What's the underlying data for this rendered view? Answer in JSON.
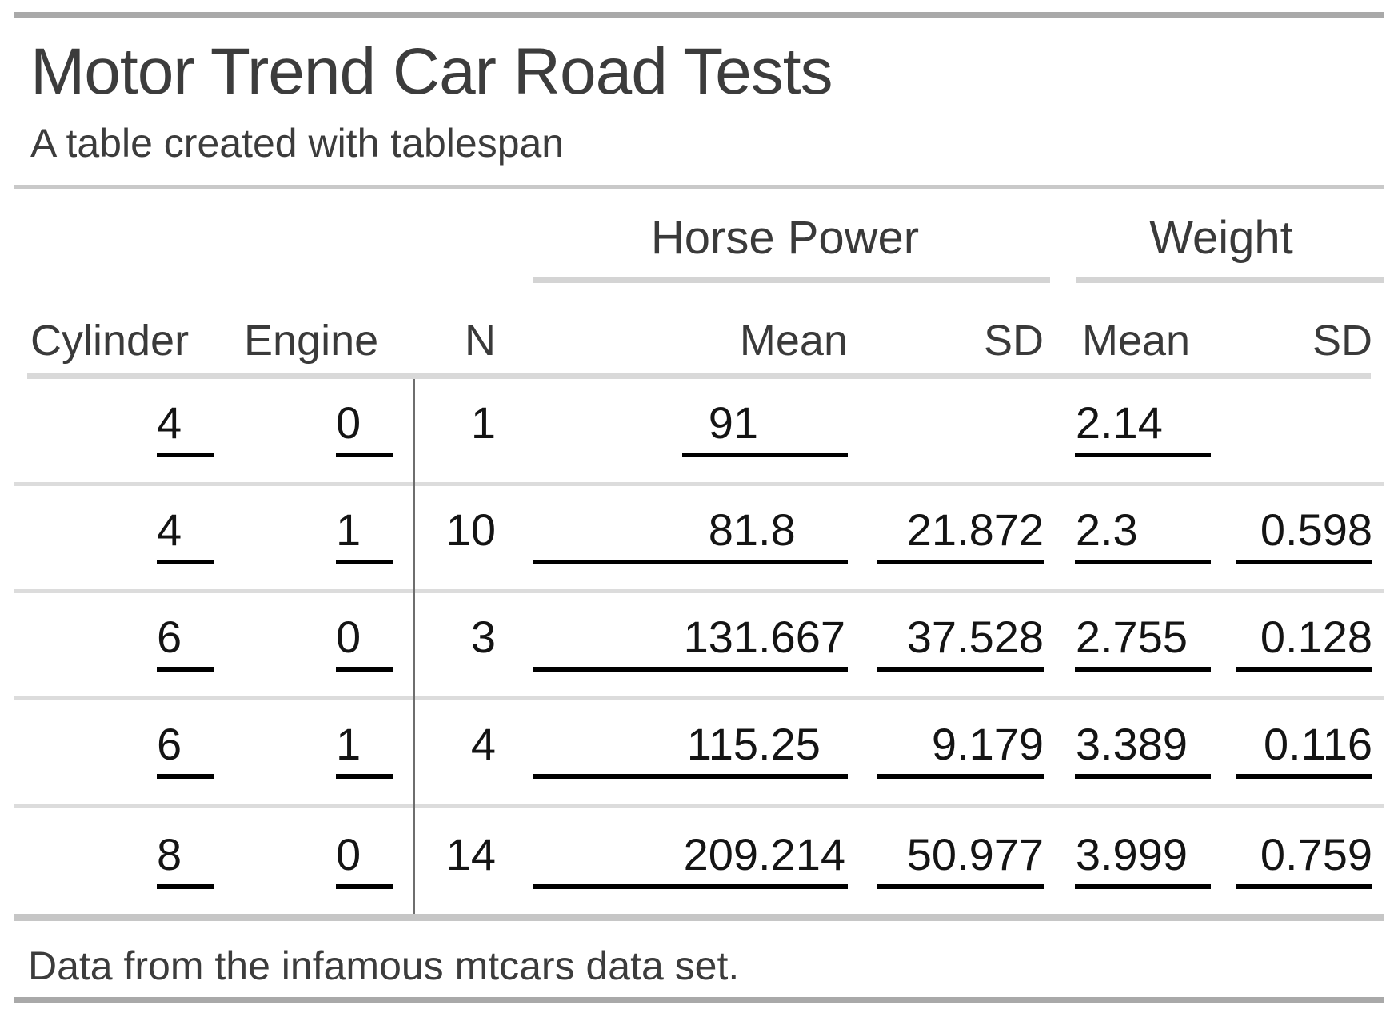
{
  "header": {
    "title": "Motor Trend Car Road Tests",
    "subtitle": "A table created with tablespan"
  },
  "table": {
    "spanners": [
      {
        "label": "Horse Power"
      },
      {
        "label": "Weight"
      }
    ],
    "columns": [
      {
        "label": "Cylinder"
      },
      {
        "label": "Engine"
      },
      {
        "label": "N"
      },
      {
        "label": "Mean"
      },
      {
        "label": "SD"
      },
      {
        "label": "Mean"
      },
      {
        "label": "SD"
      }
    ],
    "rows": [
      {
        "cylinder": "4",
        "engine": "0",
        "n": "1",
        "hp_mean": "91",
        "hp_sd": "",
        "wt_mean": "2.14",
        "wt_sd": ""
      },
      {
        "cylinder": "4",
        "engine": "1",
        "n": "10",
        "hp_mean": "81.8",
        "hp_sd": "21.872",
        "wt_mean": "2.3",
        "wt_sd": "0.598"
      },
      {
        "cylinder": "6",
        "engine": "0",
        "n": "3",
        "hp_mean": "131.667",
        "hp_sd": "37.528",
        "wt_mean": "2.755",
        "wt_sd": "0.128"
      },
      {
        "cylinder": "6",
        "engine": "1",
        "n": "4",
        "hp_mean": "115.25",
        "hp_sd": "9.179",
        "wt_mean": "3.389",
        "wt_sd": "0.116"
      },
      {
        "cylinder": "8",
        "engine": "0",
        "n": "14",
        "hp_mean": "209.214",
        "hp_sd": "50.977",
        "wt_mean": "3.999",
        "wt_sd": "0.759"
      }
    ]
  },
  "footer": {
    "note": "Data from the infamous mtcars data set."
  },
  "colors": {
    "accent_bar": "#a9a9a9",
    "section_separator": "#c9c9c9",
    "header_separator": "#d9d9d9",
    "row_separator": "#dcdcdc",
    "spanner_underline": "#d4d4d4",
    "body_bottom_line": "#c6c6c6",
    "vertical_divider": "#6e6e6e",
    "cell_underline": "#000000",
    "text": "#3c3c3c",
    "data_text": "#141414"
  },
  "chart_data": {
    "type": "table",
    "title": "Motor Trend Car Road Tests",
    "subtitle": "A table created with tablespan",
    "footnote": "Data from the infamous mtcars data set.",
    "row_name_columns": [
      "Cylinder",
      "Engine"
    ],
    "spanners": [
      {
        "label": "Horse Power",
        "columns": [
          "Mean",
          "SD"
        ]
      },
      {
        "label": "Weight",
        "columns": [
          "Mean",
          "SD"
        ]
      }
    ],
    "columns": [
      "Cylinder",
      "Engine",
      "N",
      "Horse Power Mean",
      "Horse Power SD",
      "Weight Mean",
      "Weight SD"
    ],
    "rows": [
      [
        4,
        0,
        1,
        91,
        null,
        2.14,
        null
      ],
      [
        4,
        1,
        10,
        81.8,
        21.872,
        2.3,
        0.598
      ],
      [
        6,
        0,
        3,
        131.667,
        37.528,
        2.755,
        0.128
      ],
      [
        6,
        1,
        4,
        115.25,
        9.179,
        3.389,
        0.116
      ],
      [
        8,
        0,
        14,
        209.214,
        50.977,
        3.999,
        0.759
      ]
    ]
  }
}
